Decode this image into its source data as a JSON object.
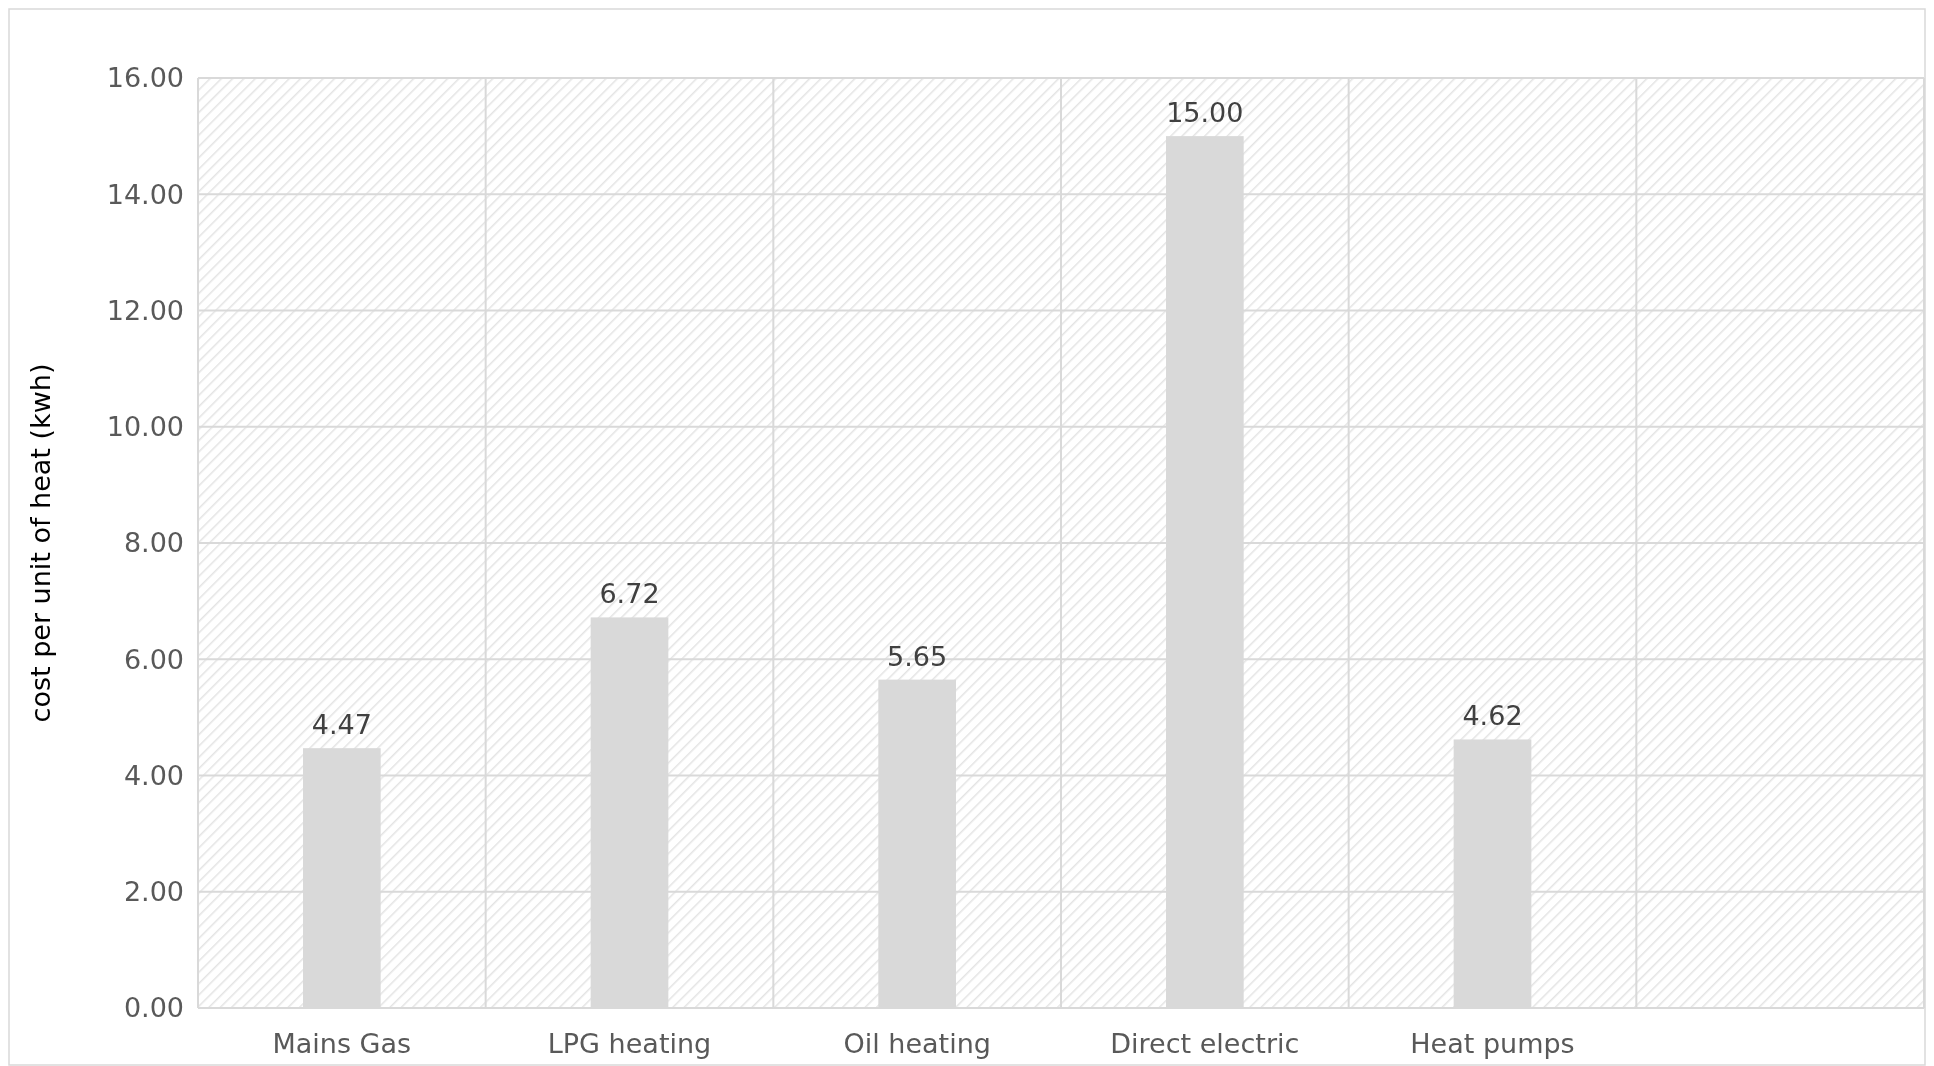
{
  "chart_data": {
    "type": "bar",
    "ylabel": "cost per unit of heat  (kwh)",
    "categories": [
      "Mains Gas",
      "LPG heating",
      "Oil heating",
      "Direct electric",
      "Heat pumps",
      null
    ],
    "values": [
      4.47,
      6.72,
      5.65,
      15.0,
      4.62,
      null
    ],
    "value_labels": [
      "4.47",
      "6.72",
      "5.65",
      "15.00",
      "4.62",
      null
    ],
    "color": "#d9d9d9",
    "ylim": [
      0,
      16
    ],
    "yticks": [
      {
        "value": 0,
        "label": "0.00"
      },
      {
        "value": 2,
        "label": "2.00"
      },
      {
        "value": 4,
        "label": "4.00"
      },
      {
        "value": 6,
        "label": "6.00"
      },
      {
        "value": 8,
        "label": "8.00"
      },
      {
        "value": 10,
        "label": "10.00"
      },
      {
        "value": 12,
        "label": "12.00"
      },
      {
        "value": 14,
        "label": "14.00"
      },
      {
        "value": 16,
        "label": "16.00"
      }
    ],
    "grid": true
  }
}
